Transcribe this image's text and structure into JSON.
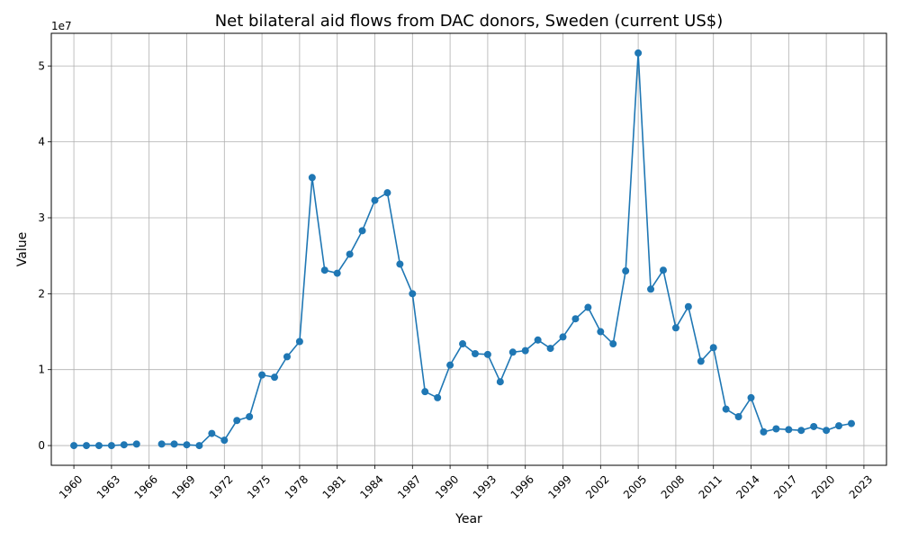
{
  "chart_data": {
    "type": "line",
    "title": "Net bilateral aid flows from DAC donors, Sweden (current US$)",
    "xlabel": "Year",
    "ylabel": "Value",
    "y_scale_label": "1e7",
    "xlim": [
      1958.2,
      2024.8
    ],
    "ylim": [
      -2600000,
      54300000
    ],
    "x_ticks": [
      1960,
      1963,
      1966,
      1969,
      1972,
      1975,
      1978,
      1981,
      1984,
      1987,
      1990,
      1993,
      1996,
      1999,
      2002,
      2005,
      2008,
      2011,
      2014,
      2017,
      2020,
      2023
    ],
    "y_ticks": [
      0,
      10000000,
      20000000,
      30000000,
      40000000,
      50000000
    ],
    "y_tick_labels": [
      "0",
      "1",
      "2",
      "3",
      "4",
      "5"
    ],
    "grid": true,
    "color": "#1f77b4",
    "series": [
      {
        "name": "",
        "points": [
          [
            1960,
            0
          ],
          [
            1961,
            0
          ],
          [
            1962,
            0
          ],
          [
            1963,
            0
          ],
          [
            1964,
            100000
          ],
          [
            1965,
            200000
          ],
          [
            1966,
            null
          ],
          [
            1967,
            200000
          ],
          [
            1968,
            200000
          ],
          [
            1969,
            100000
          ],
          [
            1970,
            0
          ],
          [
            1971,
            1600000
          ],
          [
            1972,
            700000
          ],
          [
            1973,
            3300000
          ],
          [
            1974,
            3800000
          ],
          [
            1975,
            9300000
          ],
          [
            1976,
            9000000
          ],
          [
            1977,
            11700000
          ],
          [
            1978,
            13700000
          ],
          [
            1979,
            35300000
          ],
          [
            1980,
            23100000
          ],
          [
            1981,
            22700000
          ],
          [
            1982,
            25200000
          ],
          [
            1983,
            28300000
          ],
          [
            1984,
            32300000
          ],
          [
            1985,
            33300000
          ],
          [
            1986,
            23900000
          ],
          [
            1987,
            20000000
          ],
          [
            1988,
            7100000
          ],
          [
            1989,
            6300000
          ],
          [
            1990,
            10600000
          ],
          [
            1991,
            13400000
          ],
          [
            1992,
            12100000
          ],
          [
            1993,
            12000000
          ],
          [
            1994,
            8400000
          ],
          [
            1995,
            12300000
          ],
          [
            1996,
            12500000
          ],
          [
            1997,
            13900000
          ],
          [
            1998,
            12800000
          ],
          [
            1999,
            14300000
          ],
          [
            2000,
            16700000
          ],
          [
            2001,
            18200000
          ],
          [
            2002,
            15000000
          ],
          [
            2003,
            13400000
          ],
          [
            2004,
            23000000
          ],
          [
            2005,
            51700000
          ],
          [
            2006,
            20600000
          ],
          [
            2007,
            23100000
          ],
          [
            2008,
            15500000
          ],
          [
            2009,
            18300000
          ],
          [
            2010,
            11100000
          ],
          [
            2011,
            12900000
          ],
          [
            2012,
            4800000
          ],
          [
            2013,
            3800000
          ],
          [
            2014,
            6300000
          ],
          [
            2015,
            1800000
          ],
          [
            2016,
            2200000
          ],
          [
            2017,
            2100000
          ],
          [
            2018,
            2000000
          ],
          [
            2019,
            2500000
          ],
          [
            2020,
            2000000
          ],
          [
            2021,
            2600000
          ],
          [
            2022,
            2900000
          ]
        ]
      }
    ]
  }
}
